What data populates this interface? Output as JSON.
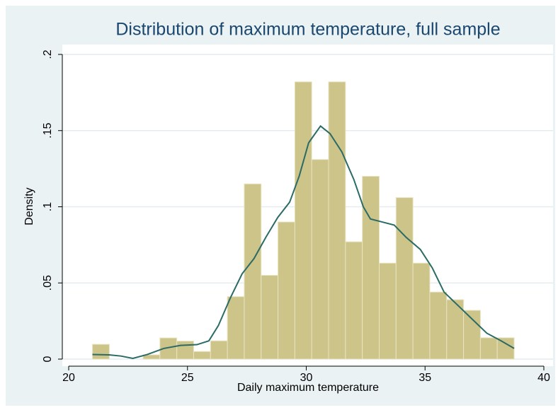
{
  "chart_data": {
    "type": "histogram",
    "title": "Distribution of maximum temperature, full sample",
    "xlabel": "Daily maximum temperature",
    "ylabel": "Density",
    "bins": [
      21,
      21.71,
      22.42,
      23.13,
      23.84,
      24.55,
      25.26,
      25.97,
      26.68,
      27.39,
      28.1,
      28.81,
      29.52,
      30.23,
      30.94,
      31.65,
      32.36,
      33.07,
      33.78,
      34.49,
      35.2,
      35.91,
      36.62,
      37.33,
      38.04,
      38.75
    ],
    "values": [
      0.0097,
      0,
      0,
      0.0028,
      0.0139,
      0.0118,
      0.005,
      0.012,
      0.041,
      0.115,
      0.055,
      0.09,
      0.182,
      0.131,
      0.182,
      0.077,
      0.12,
      0.063,
      0.106,
      0.063,
      0.044,
      0.039,
      0.032,
      0.014,
      0.014
    ],
    "color": "#cdc48a",
    "kde": {
      "color": "#2b6b66",
      "x": [
        21,
        21.7,
        22.2,
        22.7,
        23.3,
        24,
        24.7,
        25.4,
        25.9,
        26.3,
        26.8,
        27.3,
        27.8,
        28.3,
        28.8,
        29.3,
        29.7,
        30.1,
        30.6,
        31,
        31.5,
        32,
        32.4,
        32.7,
        33.2,
        33.7,
        34.2,
        34.8,
        35.3,
        35.8,
        36.4,
        37,
        37.6,
        38.2,
        38.75
      ],
      "values": [
        0.003,
        0.0028,
        0.002,
        0.0005,
        0.003,
        0.007,
        0.009,
        0.0095,
        0.012,
        0.022,
        0.04,
        0.056,
        0.066,
        0.08,
        0.093,
        0.103,
        0.12,
        0.142,
        0.153,
        0.148,
        0.136,
        0.118,
        0.1,
        0.092,
        0.09,
        0.088,
        0.08,
        0.072,
        0.06,
        0.044,
        0.035,
        0.026,
        0.017,
        0.012,
        0.007
      ]
    },
    "xlim": [
      20,
      40
    ],
    "xticks": [
      20,
      25,
      30,
      35,
      40
    ],
    "ylim": [
      0,
      0.2
    ],
    "yticks": [
      0,
      {
        "value": 0.05,
        "label": ".05"
      },
      {
        "value": 0.1,
        "label": ".1"
      },
      {
        "value": 0.15,
        "label": ".15"
      },
      {
        "value": 0.2,
        "label": ".2"
      }
    ],
    "grid": true
  }
}
